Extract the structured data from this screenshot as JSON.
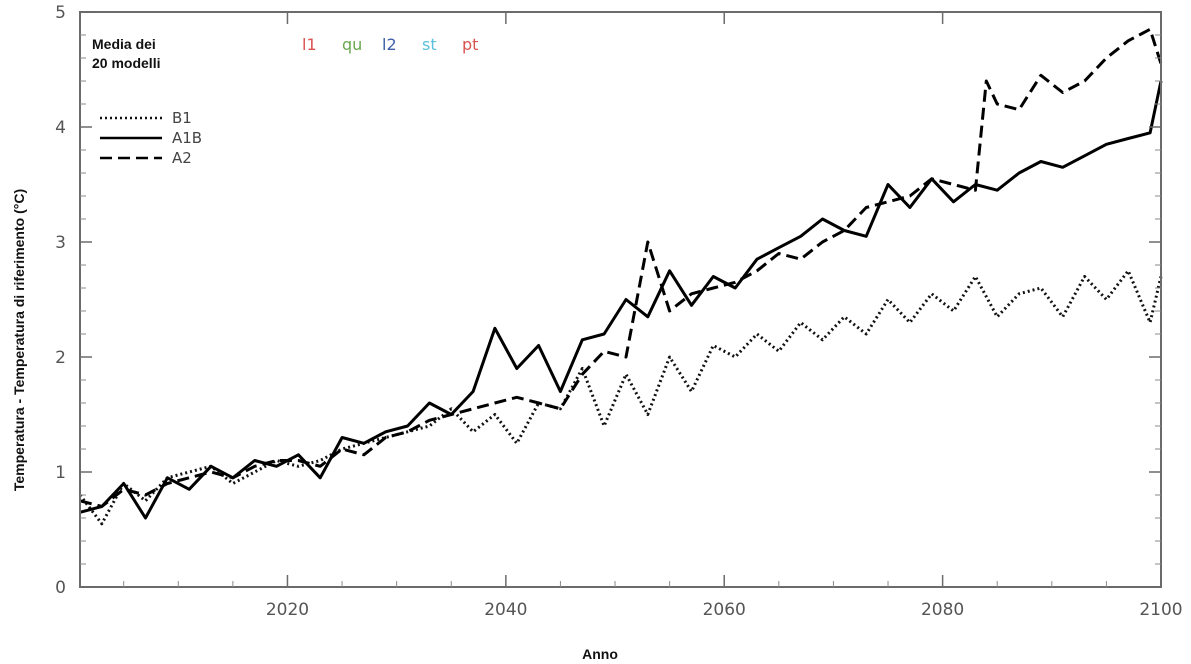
{
  "chart_data": {
    "type": "line",
    "xlabel": "Anno",
    "ylabel": "Temperatura - Temperatura di riferimento (°C)",
    "xlim": [
      2001,
      2100
    ],
    "ylim": [
      0,
      5
    ],
    "x_ticks": [
      2020,
      2040,
      2060,
      2080,
      2100
    ],
    "y_ticks": [
      0,
      1,
      2,
      3,
      4,
      5
    ],
    "annotation": [
      "Media dei",
      "20 modelli"
    ],
    "model_labels": [
      {
        "text": "l1",
        "color": "#d9534f"
      },
      {
        "text": "qu",
        "color": "#6aa84f"
      },
      {
        "text": "l2",
        "color": "#3d5fa8"
      },
      {
        "text": "st",
        "color": "#5bc0de"
      },
      {
        "text": "pt",
        "color": "#d9534f"
      }
    ],
    "legend_position": "top-left",
    "series": [
      {
        "name": "B1",
        "style": "dotted",
        "color": "#111111",
        "x": [
          2001,
          2003,
          2005,
          2007,
          2009,
          2011,
          2013,
          2015,
          2017,
          2019,
          2021,
          2023,
          2025,
          2027,
          2029,
          2031,
          2033,
          2035,
          2037,
          2039,
          2041,
          2043,
          2045,
          2047,
          2049,
          2051,
          2053,
          2055,
          2057,
          2059,
          2061,
          2063,
          2065,
          2067,
          2069,
          2071,
          2073,
          2075,
          2077,
          2079,
          2081,
          2083,
          2085,
          2087,
          2089,
          2091,
          2093,
          2095,
          2097,
          2099,
          2100
        ],
        "values": [
          0.8,
          0.55,
          0.9,
          0.75,
          0.95,
          1.0,
          1.05,
          0.9,
          1.0,
          1.1,
          1.05,
          1.1,
          1.2,
          1.25,
          1.3,
          1.35,
          1.4,
          1.55,
          1.35,
          1.5,
          1.25,
          1.6,
          1.55,
          1.9,
          1.4,
          1.85,
          1.5,
          2.0,
          1.7,
          2.1,
          2.0,
          2.2,
          2.05,
          2.3,
          2.15,
          2.35,
          2.2,
          2.5,
          2.3,
          2.55,
          2.4,
          2.7,
          2.35,
          2.55,
          2.6,
          2.35,
          2.7,
          2.5,
          2.75,
          2.3,
          2.7
        ]
      },
      {
        "name": "A1B",
        "style": "solid",
        "color": "#000000",
        "x": [
          2001,
          2003,
          2005,
          2007,
          2009,
          2011,
          2013,
          2015,
          2017,
          2019,
          2021,
          2023,
          2025,
          2027,
          2029,
          2031,
          2033,
          2035,
          2037,
          2039,
          2041,
          2043,
          2045,
          2047,
          2049,
          2051,
          2053,
          2055,
          2057,
          2059,
          2061,
          2063,
          2065,
          2067,
          2069,
          2071,
          2073,
          2075,
          2077,
          2079,
          2081,
          2083,
          2085,
          2087,
          2089,
          2091,
          2093,
          2095,
          2097,
          2099,
          2100
        ],
        "values": [
          0.65,
          0.7,
          0.9,
          0.6,
          0.95,
          0.85,
          1.05,
          0.95,
          1.1,
          1.05,
          1.15,
          0.95,
          1.3,
          1.25,
          1.35,
          1.4,
          1.6,
          1.5,
          1.7,
          2.25,
          1.9,
          2.1,
          1.7,
          2.15,
          2.2,
          2.5,
          2.35,
          2.75,
          2.45,
          2.7,
          2.6,
          2.85,
          2.95,
          3.05,
          3.2,
          3.1,
          3.05,
          3.5,
          3.3,
          3.55,
          3.35,
          3.5,
          3.45,
          3.6,
          3.7,
          3.65,
          3.75,
          3.85,
          3.9,
          3.95,
          4.4
        ]
      },
      {
        "name": "A2",
        "style": "dashed",
        "color": "#000000",
        "x": [
          2001,
          2003,
          2005,
          2007,
          2009,
          2011,
          2013,
          2015,
          2017,
          2019,
          2021,
          2023,
          2025,
          2027,
          2029,
          2031,
          2033,
          2035,
          2037,
          2039,
          2041,
          2043,
          2045,
          2047,
          2049,
          2051,
          2053,
          2055,
          2057,
          2059,
          2061,
          2063,
          2065,
          2067,
          2069,
          2071,
          2073,
          2075,
          2077,
          2079,
          2081,
          2083,
          2084,
          2085,
          2087,
          2089,
          2091,
          2093,
          2095,
          2097,
          2099,
          2100
        ],
        "values": [
          0.75,
          0.7,
          0.85,
          0.8,
          0.9,
          0.95,
          1.0,
          0.95,
          1.05,
          1.1,
          1.1,
          1.05,
          1.2,
          1.15,
          1.3,
          1.35,
          1.45,
          1.5,
          1.55,
          1.6,
          1.65,
          1.6,
          1.55,
          1.85,
          2.05,
          2.0,
          3.0,
          2.4,
          2.55,
          2.6,
          2.65,
          2.75,
          2.9,
          2.85,
          3.0,
          3.1,
          3.3,
          3.35,
          3.4,
          3.55,
          3.5,
          3.45,
          4.4,
          4.2,
          4.15,
          4.45,
          4.3,
          4.4,
          4.6,
          4.75,
          4.85,
          4.55
        ]
      }
    ]
  }
}
